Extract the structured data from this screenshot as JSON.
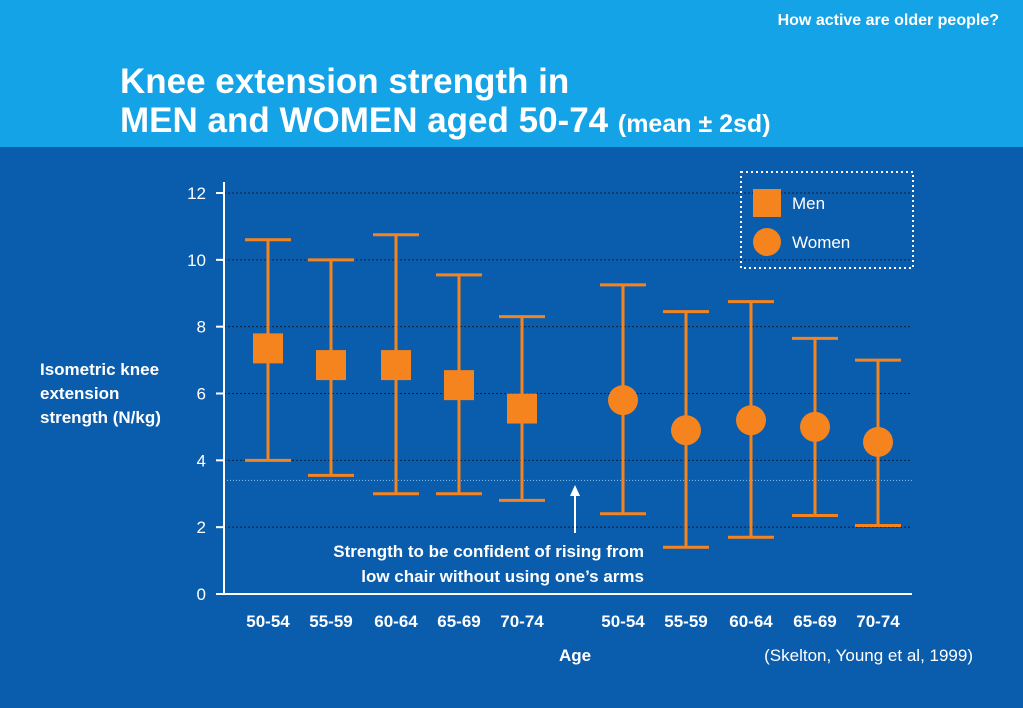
{
  "header": {
    "kicker": "How active are older people?",
    "title_line1": "Knee extension strength in",
    "title_line2": "MEN and WOMEN aged 50-74",
    "title_suffix": "(mean ± 2sd)"
  },
  "chart_data": {
    "type": "scatter",
    "subtype": "error-bar",
    "title": "Knee extension strength in MEN and WOMEN aged 50-74 (mean ± 2sd)",
    "xlabel": "Age",
    "ylabel": "Isometric knee extension strength (N/kg)",
    "ylabel_lines": [
      "Isometric knee",
      "extension",
      "strength (N/kg)"
    ],
    "ylim": [
      0,
      12
    ],
    "yticks": [
      0,
      2,
      4,
      6,
      8,
      10,
      12
    ],
    "grid": true,
    "legend_position": "top-right",
    "categories": [
      "50-54",
      "55-59",
      "60-64",
      "65-69",
      "70-74"
    ],
    "series": [
      {
        "name": "Men",
        "marker": "square",
        "color": "#f5841f",
        "mean": [
          7.35,
          6.85,
          6.85,
          6.25,
          5.55
        ],
        "lower": [
          4.0,
          3.55,
          3.0,
          3.0,
          2.8
        ],
        "upper": [
          10.6,
          10.0,
          10.75,
          9.55,
          8.3
        ]
      },
      {
        "name": "Women",
        "marker": "circle",
        "color": "#f5841f",
        "mean": [
          5.8,
          4.9,
          5.2,
          5.0,
          4.55
        ],
        "lower": [
          2.4,
          1.4,
          1.7,
          2.35,
          2.05
        ],
        "upper": [
          9.25,
          8.45,
          8.75,
          7.65,
          7.0
        ]
      }
    ],
    "threshold": {
      "value": 3.4,
      "label_lines": [
        "Strength to be confident of rising from",
        "low chair without using one’s arms"
      ]
    },
    "source": "(Skelton, Young et al, 1999)"
  }
}
